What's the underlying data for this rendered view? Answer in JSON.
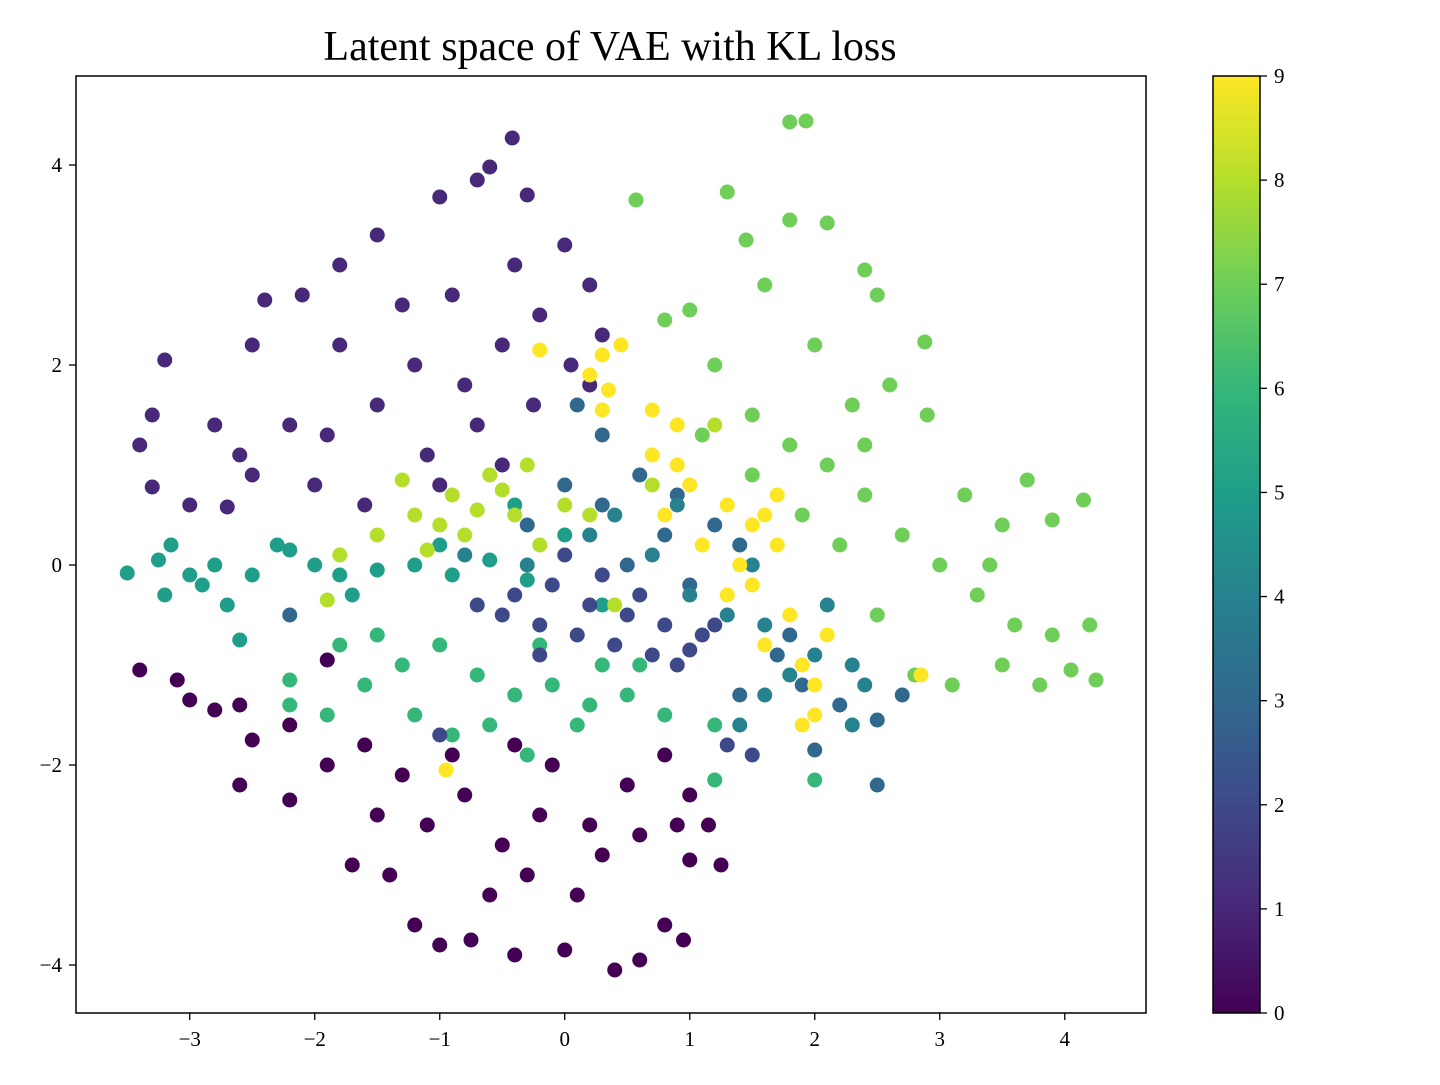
{
  "chart_data": {
    "type": "scatter",
    "title": "Latent space of VAE with KL loss",
    "xlabel": "",
    "ylabel": "",
    "xlim": [
      -3.91,
      4.65
    ],
    "ylim": [
      -4.48,
      4.89
    ],
    "xticks": [
      -3,
      -2,
      -1,
      0,
      1,
      2,
      3,
      4
    ],
    "yticks": [
      -4,
      -2,
      0,
      2,
      4
    ],
    "grid": false,
    "colormap": "viridis",
    "colorbar": {
      "ticks": [
        0,
        1,
        2,
        3,
        4,
        5,
        6,
        7,
        8,
        9
      ],
      "range": [
        0,
        9
      ]
    },
    "class_colors": [
      "#440154",
      "#482878",
      "#3e4989",
      "#31688e",
      "#26828e",
      "#1f9e89",
      "#35b779",
      "#6ece58",
      "#b5de2b",
      "#fde725"
    ],
    "note_on_points": "representative sample of the points per class label",
    "series": [
      {
        "label": 0,
        "points": [
          [
            -3.4,
            -1.05
          ],
          [
            -3.1,
            -1.15
          ],
          [
            -3.0,
            -1.35
          ],
          [
            -2.8,
            -1.45
          ],
          [
            -2.6,
            -1.4
          ],
          [
            -2.5,
            -1.75
          ],
          [
            -2.6,
            -2.2
          ],
          [
            -2.2,
            -2.35
          ],
          [
            -1.9,
            -2.0
          ],
          [
            -1.7,
            -3.0
          ],
          [
            -1.4,
            -3.1
          ],
          [
            -1.2,
            -3.6
          ],
          [
            -1.0,
            -3.8
          ],
          [
            -0.75,
            -3.75
          ],
          [
            -0.4,
            -3.9
          ],
          [
            0.0,
            -3.85
          ],
          [
            0.4,
            -4.05
          ],
          [
            0.6,
            -3.95
          ],
          [
            0.95,
            -3.75
          ],
          [
            0.8,
            -3.6
          ],
          [
            1.0,
            -2.95
          ],
          [
            1.25,
            -3.0
          ],
          [
            1.15,
            -2.6
          ],
          [
            1.0,
            -2.3
          ],
          [
            0.8,
            -1.9
          ],
          [
            0.5,
            -2.2
          ],
          [
            0.2,
            -2.6
          ],
          [
            -0.2,
            -2.5
          ],
          [
            -0.5,
            -2.8
          ],
          [
            -0.8,
            -2.3
          ],
          [
            -1.1,
            -2.6
          ],
          [
            -1.3,
            -2.1
          ],
          [
            -0.3,
            -3.1
          ],
          [
            0.1,
            -3.3
          ],
          [
            -0.6,
            -3.3
          ],
          [
            -1.5,
            -2.5
          ],
          [
            -1.9,
            -0.95
          ],
          [
            0.3,
            -2.9
          ],
          [
            0.6,
            -2.7
          ],
          [
            -0.9,
            -1.9
          ],
          [
            -0.1,
            -2.0
          ],
          [
            0.9,
            -2.6
          ],
          [
            -1.6,
            -1.8
          ],
          [
            -2.2,
            -1.6
          ],
          [
            -0.4,
            -1.8
          ]
        ]
      },
      {
        "label": 1,
        "points": [
          [
            -0.42,
            4.27
          ],
          [
            -0.6,
            3.98
          ],
          [
            -0.7,
            3.85
          ],
          [
            -0.3,
            3.7
          ],
          [
            -1.0,
            3.68
          ],
          [
            -1.5,
            3.3
          ],
          [
            -1.8,
            3.0
          ],
          [
            -2.1,
            2.7
          ],
          [
            -2.4,
            2.65
          ],
          [
            -2.5,
            2.2
          ],
          [
            -3.2,
            2.05
          ],
          [
            -3.3,
            1.5
          ],
          [
            -3.4,
            1.2
          ],
          [
            -3.3,
            0.78
          ],
          [
            -3.0,
            0.6
          ],
          [
            -2.7,
            0.58
          ],
          [
            -2.5,
            0.9
          ],
          [
            -2.0,
            0.8
          ],
          [
            -1.6,
            0.6
          ],
          [
            -1.0,
            0.8
          ],
          [
            -0.5,
            1.0
          ],
          [
            0.2,
            1.8
          ],
          [
            0.3,
            2.3
          ],
          [
            0.2,
            2.8
          ],
          [
            0.0,
            3.2
          ],
          [
            -0.2,
            2.5
          ],
          [
            -0.5,
            2.2
          ],
          [
            -0.8,
            1.8
          ],
          [
            -1.2,
            2.0
          ],
          [
            -1.5,
            1.6
          ],
          [
            -1.8,
            2.2
          ],
          [
            -2.2,
            1.4
          ],
          [
            -2.8,
            1.4
          ],
          [
            -2.6,
            1.1
          ],
          [
            -0.9,
            2.7
          ],
          [
            -0.4,
            3.0
          ],
          [
            -1.3,
            2.6
          ],
          [
            -0.7,
            1.4
          ],
          [
            -1.9,
            1.3
          ],
          [
            -1.1,
            1.1
          ],
          [
            0.05,
            2.0
          ],
          [
            -0.25,
            1.6
          ]
        ]
      },
      {
        "label": 5,
        "points": [
          [
            -3.5,
            -0.08
          ],
          [
            -3.25,
            0.05
          ],
          [
            -3.0,
            -0.1
          ],
          [
            -3.15,
            0.2
          ],
          [
            -2.8,
            0.0
          ],
          [
            -2.5,
            -0.1
          ],
          [
            -2.2,
            0.15
          ],
          [
            -2.0,
            0.0
          ],
          [
            -1.8,
            -0.1
          ],
          [
            -1.5,
            -0.05
          ],
          [
            -1.2,
            0.0
          ],
          [
            -0.9,
            -0.1
          ],
          [
            -0.6,
            0.05
          ],
          [
            -0.3,
            -0.15
          ],
          [
            -2.6,
            -0.75
          ],
          [
            -2.7,
            -0.4
          ],
          [
            -2.3,
            0.2
          ],
          [
            -1.7,
            -0.3
          ],
          [
            -1.0,
            0.2
          ],
          [
            -0.4,
            0.6
          ],
          [
            0.0,
            0.3
          ],
          [
            0.3,
            -0.4
          ],
          [
            -3.2,
            -0.3
          ],
          [
            -2.9,
            -0.2
          ]
        ]
      },
      {
        "label": 6,
        "points": [
          [
            -1.9,
            -1.5
          ],
          [
            -1.6,
            -1.2
          ],
          [
            -1.3,
            -1.0
          ],
          [
            -1.0,
            -0.8
          ],
          [
            -0.7,
            -1.1
          ],
          [
            -0.4,
            -1.3
          ],
          [
            -0.1,
            -1.2
          ],
          [
            0.2,
            -1.4
          ],
          [
            0.5,
            -1.3
          ],
          [
            0.8,
            -1.5
          ],
          [
            -1.5,
            -0.7
          ],
          [
            -1.2,
            -1.5
          ],
          [
            -0.9,
            -1.7
          ],
          [
            -0.6,
            -1.6
          ],
          [
            -0.3,
            -1.9
          ],
          [
            0.1,
            -1.6
          ],
          [
            -1.8,
            -0.8
          ],
          [
            -2.2,
            -1.4
          ],
          [
            -2.2,
            -1.15
          ],
          [
            1.2,
            -2.15
          ],
          [
            2.0,
            -2.15
          ],
          [
            0.6,
            -1.0
          ],
          [
            -0.2,
            -0.8
          ],
          [
            0.3,
            -1.0
          ],
          [
            1.2,
            -1.6
          ]
        ]
      },
      {
        "label": 7,
        "points": [
          [
            1.8,
            4.43
          ],
          [
            1.93,
            4.44
          ],
          [
            1.3,
            3.73
          ],
          [
            1.45,
            3.25
          ],
          [
            0.57,
            3.65
          ],
          [
            1.8,
            3.45
          ],
          [
            2.1,
            3.42
          ],
          [
            2.4,
            2.95
          ],
          [
            2.88,
            2.23
          ],
          [
            2.5,
            2.7
          ],
          [
            1.0,
            2.55
          ],
          [
            0.8,
            2.45
          ],
          [
            1.2,
            2.0
          ],
          [
            1.5,
            1.5
          ],
          [
            1.8,
            1.2
          ],
          [
            2.1,
            1.0
          ],
          [
            2.4,
            0.7
          ],
          [
            2.7,
            0.3
          ],
          [
            3.0,
            0.0
          ],
          [
            3.3,
            -0.3
          ],
          [
            3.6,
            -0.6
          ],
          [
            3.9,
            -0.7
          ],
          [
            4.25,
            -1.15
          ],
          [
            4.05,
            -1.05
          ],
          [
            3.8,
            -1.2
          ],
          [
            3.5,
            -1.0
          ],
          [
            3.1,
            -1.2
          ],
          [
            4.15,
            0.65
          ],
          [
            3.9,
            0.45
          ],
          [
            3.7,
            0.85
          ],
          [
            3.5,
            0.4
          ],
          [
            3.2,
            0.7
          ],
          [
            2.9,
            1.5
          ],
          [
            2.6,
            1.8
          ],
          [
            2.3,
            1.6
          ],
          [
            2.0,
            2.2
          ],
          [
            1.6,
            2.8
          ],
          [
            1.9,
            0.5
          ],
          [
            2.2,
            0.2
          ],
          [
            2.5,
            -0.5
          ],
          [
            2.8,
            -1.1
          ],
          [
            1.5,
            0.9
          ],
          [
            1.1,
            1.3
          ],
          [
            4.2,
            -0.6
          ],
          [
            3.4,
            0.0
          ],
          [
            2.4,
            1.2
          ]
        ]
      },
      {
        "label": 8,
        "points": [
          [
            -1.8,
            0.1
          ],
          [
            -1.5,
            0.3
          ],
          [
            -1.2,
            0.5
          ],
          [
            -0.9,
            0.7
          ],
          [
            -0.6,
            0.9
          ],
          [
            -0.3,
            1.0
          ],
          [
            0.0,
            0.6
          ],
          [
            -0.4,
            0.5
          ],
          [
            -0.8,
            0.3
          ],
          [
            -0.2,
            0.2
          ],
          [
            -1.0,
            0.4
          ],
          [
            -0.5,
            0.75
          ],
          [
            0.2,
            0.5
          ],
          [
            -1.3,
            0.85
          ],
          [
            -0.7,
            0.55
          ],
          [
            0.4,
            -0.4
          ],
          [
            -1.9,
            -0.35
          ],
          [
            1.2,
            1.4
          ],
          [
            0.7,
            0.8
          ],
          [
            -1.1,
            0.15
          ]
        ]
      },
      {
        "label": 2,
        "points": [
          [
            -0.5,
            -0.5
          ],
          [
            -0.2,
            -0.6
          ],
          [
            0.1,
            -0.7
          ],
          [
            0.4,
            -0.8
          ],
          [
            0.7,
            -0.9
          ],
          [
            1.0,
            -0.85
          ],
          [
            0.8,
            -0.6
          ],
          [
            0.5,
            -0.5
          ],
          [
            0.2,
            -0.4
          ],
          [
            -0.1,
            -0.2
          ],
          [
            -0.4,
            -0.3
          ],
          [
            0.3,
            -0.1
          ],
          [
            0.6,
            -0.3
          ],
          [
            -0.2,
            -0.9
          ],
          [
            1.1,
            -0.7
          ],
          [
            -0.7,
            -0.4
          ],
          [
            1.3,
            -1.8
          ],
          [
            1.5,
            -1.9
          ],
          [
            -1.0,
            -1.7
          ],
          [
            0.0,
            0.1
          ],
          [
            0.9,
            -1.0
          ],
          [
            1.2,
            -0.6
          ]
        ]
      },
      {
        "label": 3,
        "points": [
          [
            0.3,
            1.3
          ],
          [
            0.6,
            0.9
          ],
          [
            0.9,
            0.7
          ],
          [
            1.2,
            0.4
          ],
          [
            1.4,
            0.2
          ],
          [
            1.7,
            -0.9
          ],
          [
            1.9,
            -1.2
          ],
          [
            2.2,
            -1.4
          ],
          [
            2.5,
            -1.55
          ],
          [
            2.5,
            -2.2
          ],
          [
            2.0,
            -1.85
          ],
          [
            1.4,
            -1.3
          ],
          [
            0.8,
            0.3
          ],
          [
            0.3,
            0.6
          ],
          [
            0.0,
            0.8
          ],
          [
            -0.3,
            0.4
          ],
          [
            0.5,
            0.0
          ],
          [
            1.0,
            -0.2
          ],
          [
            0.1,
            1.6
          ],
          [
            -2.2,
            -0.5
          ],
          [
            2.7,
            -1.3
          ],
          [
            1.8,
            -0.7
          ]
        ]
      },
      {
        "label": 4,
        "points": [
          [
            0.4,
            0.5
          ],
          [
            0.7,
            0.1
          ],
          [
            1.0,
            -0.3
          ],
          [
            1.3,
            -0.5
          ],
          [
            1.6,
            -0.6
          ],
          [
            2.0,
            -0.9
          ],
          [
            2.3,
            -1.0
          ],
          [
            2.4,
            -1.2
          ],
          [
            2.1,
            -0.4
          ],
          [
            1.6,
            -1.3
          ],
          [
            1.4,
            -1.6
          ],
          [
            0.2,
            0.3
          ],
          [
            -0.3,
            0.0
          ],
          [
            -0.8,
            0.1
          ],
          [
            0.9,
            0.6
          ],
          [
            1.5,
            0.0
          ],
          [
            2.3,
            -1.6
          ],
          [
            1.8,
            -1.1
          ]
        ]
      },
      {
        "label": 9,
        "points": [
          [
            -0.2,
            2.15
          ],
          [
            0.45,
            2.2
          ],
          [
            0.3,
            2.1
          ],
          [
            0.2,
            1.9
          ],
          [
            0.35,
            1.75
          ],
          [
            0.3,
            1.55
          ],
          [
            0.7,
            1.55
          ],
          [
            0.9,
            1.4
          ],
          [
            0.7,
            1.1
          ],
          [
            1.0,
            0.8
          ],
          [
            1.3,
            0.6
          ],
          [
            1.5,
            0.4
          ],
          [
            1.7,
            0.2
          ],
          [
            1.5,
            -0.2
          ],
          [
            1.8,
            -0.5
          ],
          [
            1.6,
            -0.8
          ],
          [
            1.9,
            -1.0
          ],
          [
            2.0,
            -1.2
          ],
          [
            1.9,
            -1.6
          ],
          [
            2.0,
            -1.5
          ],
          [
            2.85,
            -1.1
          ],
          [
            1.3,
            -0.3
          ],
          [
            1.1,
            0.2
          ],
          [
            0.8,
            0.5
          ],
          [
            1.7,
            0.7
          ],
          [
            1.4,
            0.0
          ],
          [
            1.6,
            0.5
          ],
          [
            2.1,
            -0.7
          ],
          [
            -0.95,
            -2.05
          ],
          [
            0.9,
            1.0
          ]
        ]
      }
    ]
  }
}
